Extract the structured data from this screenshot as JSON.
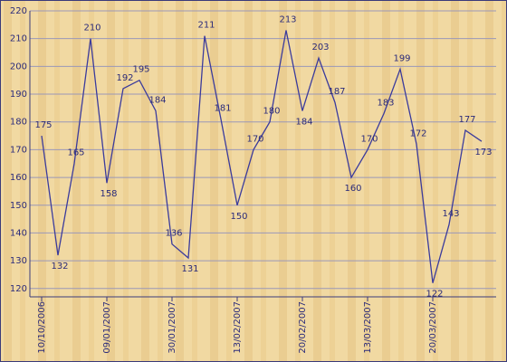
{
  "chart_data": {
    "type": "line",
    "categories": [
      "10/10/2006",
      null,
      null,
      null,
      "09/01/2007",
      null,
      null,
      null,
      "30/01/2007",
      null,
      null,
      null,
      "13/02/2007",
      null,
      null,
      null,
      "20/02/2007",
      null,
      null,
      null,
      "13/03/2007",
      null,
      null,
      null,
      "20/03/2007",
      null,
      null,
      null
    ],
    "values": [
      175,
      132,
      165,
      210,
      158,
      192,
      195,
      184,
      136,
      131,
      211,
      181,
      150,
      170,
      180,
      213,
      184,
      203,
      187,
      160,
      170,
      183,
      199,
      172,
      122,
      143,
      177,
      173
    ],
    "color": "#3b3b9c",
    "ylim": [
      117,
      220
    ],
    "yticks": [
      120,
      130,
      140,
      150,
      160,
      170,
      180,
      190,
      200,
      210,
      220
    ],
    "grid": true
  }
}
